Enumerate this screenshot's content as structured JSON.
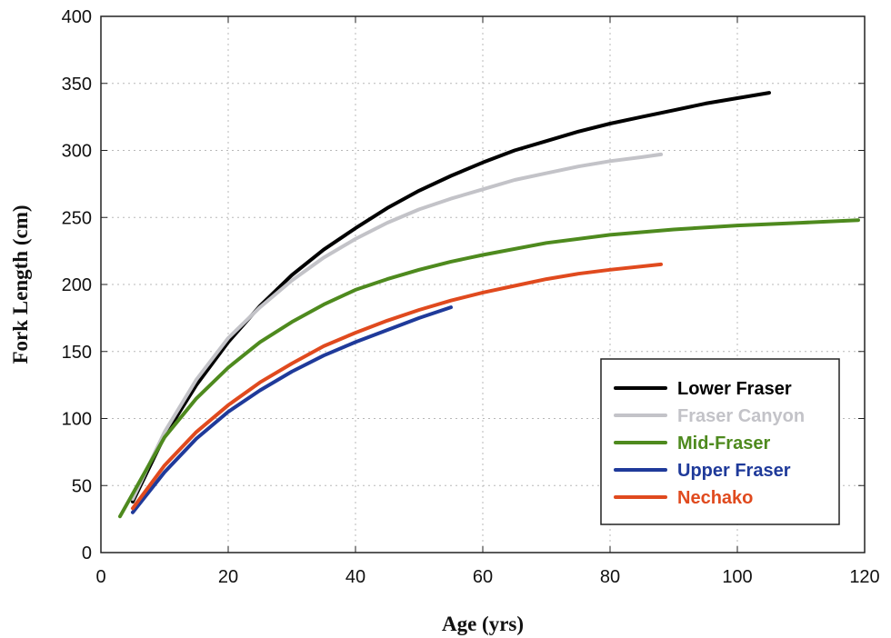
{
  "chart_data": {
    "type": "line",
    "title": "",
    "xlabel": "Age (yrs)",
    "ylabel": "Fork Length (cm)",
    "xlim": [
      0,
      120
    ],
    "ylim": [
      0,
      400
    ],
    "xticks": [
      0,
      20,
      40,
      60,
      80,
      100,
      120
    ],
    "yticks": [
      0,
      50,
      100,
      150,
      200,
      250,
      300,
      350,
      400
    ],
    "grid": true,
    "legend_position": "bottom-right",
    "series": [
      {
        "name": "Lower Fraser",
        "color": "#000000",
        "x": [
          5,
          10,
          15,
          20,
          25,
          30,
          35,
          40,
          45,
          50,
          55,
          60,
          65,
          70,
          75,
          80,
          85,
          90,
          95,
          100,
          105
        ],
        "y": [
          38,
          87,
          125,
          157,
          184,
          207,
          226,
          242,
          257,
          270,
          281,
          291,
          300,
          307,
          314,
          320,
          325,
          330,
          335,
          339,
          343
        ]
      },
      {
        "name": "Fraser Canyon",
        "color": "#c3c3c8",
        "x": [
          5,
          10,
          15,
          20,
          25,
          30,
          35,
          40,
          45,
          50,
          55,
          60,
          65,
          70,
          75,
          80,
          85,
          88
        ],
        "y": [
          40,
          90,
          129,
          160,
          183,
          203,
          220,
          234,
          246,
          256,
          264,
          271,
          278,
          283,
          288,
          292,
          295,
          297
        ]
      },
      {
        "name": "Mid-Fraser",
        "color": "#4e8a1e",
        "x": [
          3,
          10,
          15,
          20,
          25,
          30,
          35,
          40,
          45,
          50,
          55,
          60,
          70,
          80,
          90,
          100,
          110,
          119
        ],
        "y": [
          27,
          86,
          115,
          138,
          157,
          172,
          185,
          196,
          204,
          211,
          217,
          222,
          231,
          237,
          241,
          244,
          246,
          248
        ]
      },
      {
        "name": "Upper Fraser",
        "color": "#1f3a9a",
        "x": [
          5,
          10,
          15,
          20,
          25,
          30,
          35,
          40,
          45,
          50,
          55
        ],
        "y": [
          30,
          60,
          85,
          105,
          121,
          135,
          147,
          157,
          166,
          175,
          183
        ]
      },
      {
        "name": "Nechako",
        "color": "#e04a1e",
        "x": [
          5,
          10,
          15,
          20,
          25,
          30,
          35,
          40,
          45,
          50,
          55,
          60,
          65,
          70,
          75,
          80,
          88
        ],
        "y": [
          33,
          65,
          90,
          110,
          127,
          141,
          154,
          164,
          173,
          181,
          188,
          194,
          199,
          204,
          208,
          211,
          215
        ]
      }
    ]
  }
}
